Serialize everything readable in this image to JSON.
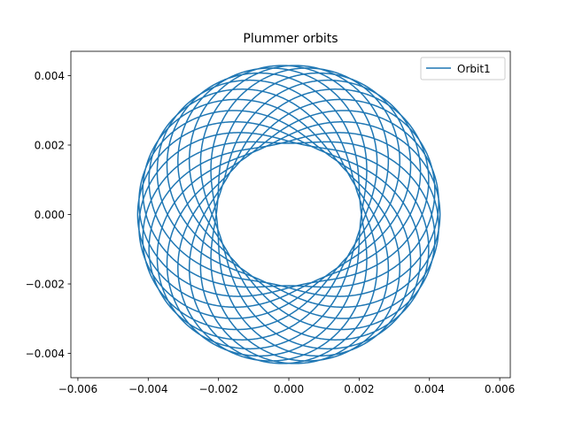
{
  "chart_data": {
    "type": "line",
    "title": "Plummer orbits",
    "xlabel": "",
    "ylabel": "",
    "xlim": [
      -0.0062,
      0.0063
    ],
    "ylim": [
      -0.0047,
      0.0047
    ],
    "xticks": [
      -0.006,
      -0.004,
      -0.002,
      0.0,
      0.002,
      0.004,
      0.006
    ],
    "xtick_labels": [
      "−0.006",
      "−0.004",
      "−0.002",
      "0.000",
      "0.002",
      "0.004",
      "0.006"
    ],
    "yticks": [
      -0.004,
      -0.002,
      0.0,
      0.002,
      0.004
    ],
    "ytick_labels": [
      "−0.004",
      "−0.002",
      "0.000",
      "0.002",
      "0.004"
    ],
    "grid": false,
    "legend": {
      "placement": "top-right"
    },
    "series": [
      {
        "name": "Orbit1",
        "color": "#1f77b4",
        "orbit": {
          "r_min": 0.00205,
          "r_max": 0.0043,
          "radial_periods": 30,
          "azimuth_turns": 19
        }
      }
    ]
  }
}
